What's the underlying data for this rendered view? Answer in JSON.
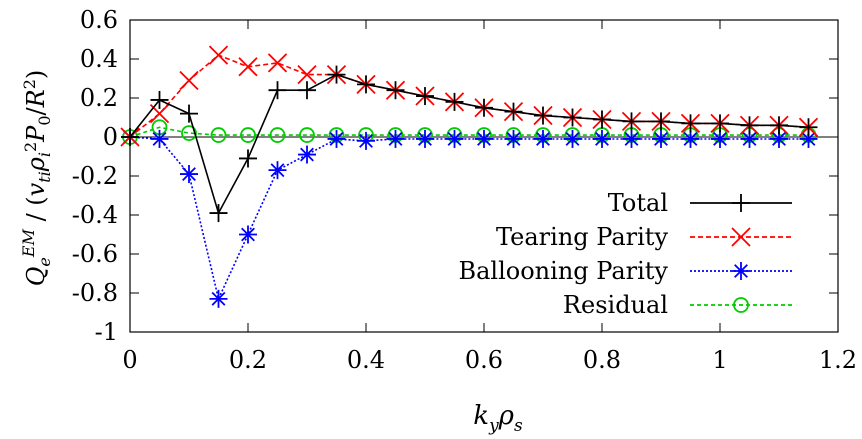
{
  "chart_data": {
    "type": "line",
    "xlabel": "k_y ρ_s",
    "ylabel": "Q_e^EM / (v_ti ρ_i^2 P_0 / R^2)",
    "xlim": [
      0,
      1.2
    ],
    "ylim": [
      -1,
      0.6
    ],
    "xticks": [
      "0",
      "0.2",
      "0.4",
      "0.6",
      "0.8",
      "1",
      "1.2"
    ],
    "yticks": [
      "0.6",
      "0.4",
      "0.2",
      "0",
      "-0.2",
      "-0.4",
      "-0.6",
      "-0.8",
      "-1"
    ],
    "grid": false,
    "legend_position": "bottom-right",
    "x": [
      0,
      0.05,
      0.1,
      0.15,
      0.2,
      0.25,
      0.3,
      0.35,
      0.4,
      0.45,
      0.5,
      0.55,
      0.6,
      0.65,
      0.7,
      0.75,
      0.8,
      0.85,
      0.9,
      0.95,
      1.0,
      1.05,
      1.1,
      1.15
    ],
    "series": [
      {
        "name": "Total",
        "color": "#000000",
        "marker": "plus",
        "dash": "",
        "values": [
          0,
          0.19,
          0.12,
          -0.39,
          -0.11,
          0.24,
          0.24,
          0.32,
          0.27,
          0.24,
          0.21,
          0.18,
          0.15,
          0.13,
          0.11,
          0.1,
          0.09,
          0.08,
          0.08,
          0.07,
          0.07,
          0.06,
          0.06,
          0.05
        ]
      },
      {
        "name": "Tearing Parity",
        "color": "#ff0000",
        "marker": "x",
        "dash": "5,3",
        "values": [
          0,
          0.12,
          0.29,
          0.42,
          0.36,
          0.38,
          0.32,
          0.32,
          0.27,
          0.24,
          0.21,
          0.18,
          0.15,
          0.13,
          0.11,
          0.1,
          0.09,
          0.08,
          0.08,
          0.07,
          0.07,
          0.06,
          0.06,
          0.05
        ]
      },
      {
        "name": "Ballooning Parity",
        "color": "#0000ff",
        "marker": "star",
        "dash": "2,2",
        "values": [
          0,
          -0.01,
          -0.19,
          -0.83,
          -0.5,
          -0.17,
          -0.09,
          -0.01,
          -0.02,
          -0.01,
          -0.01,
          -0.01,
          -0.01,
          -0.01,
          -0.01,
          -0.01,
          -0.01,
          -0.01,
          -0.01,
          -0.01,
          -0.01,
          -0.01,
          -0.01,
          -0.01
        ]
      },
      {
        "name": "Residual",
        "color": "#00cc00",
        "marker": "circle",
        "dash": "4,3",
        "values": [
          0,
          0.05,
          0.02,
          0.01,
          0.01,
          0.01,
          0.01,
          0.01,
          0.01,
          0.01,
          0.01,
          0.01,
          0.01,
          0.01,
          0.01,
          0.01,
          0.01,
          0.01,
          0.01,
          0.01,
          0.01,
          0.01,
          0.01,
          0.01
        ]
      }
    ]
  }
}
